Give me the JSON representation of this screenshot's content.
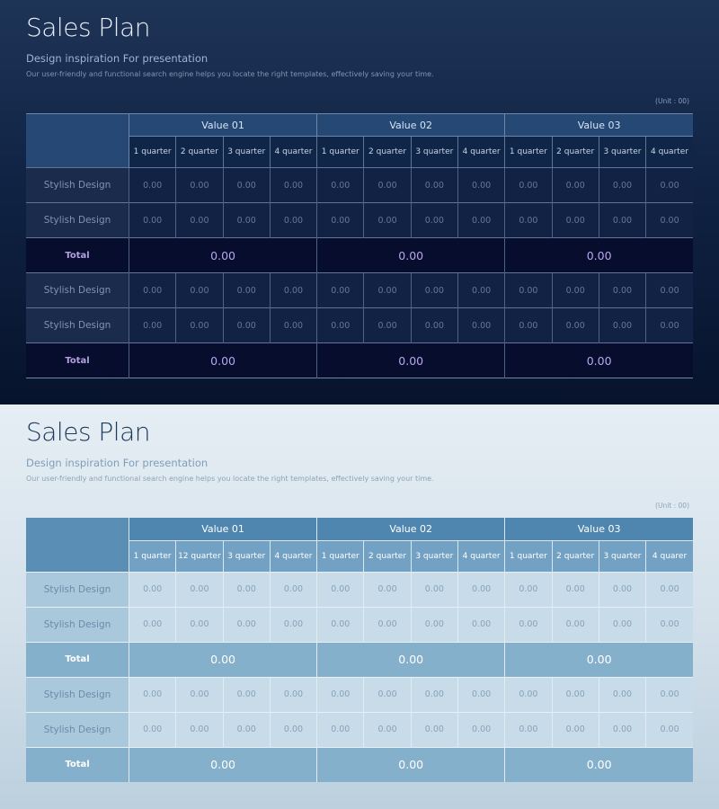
{
  "slides": [
    {
      "theme": "dark",
      "title": "Sales Plan",
      "subtitle": "Design inspiration For presentation",
      "description": "Our user-friendly and functional search engine helps you locate the right templates, effectively saving your time.",
      "unit": "(Unit : 00)",
      "groups": [
        "Value 01",
        "Value 02",
        "Value 03"
      ],
      "quarters": [
        [
          "1 quarter",
          "2 quarter",
          "3 quarter",
          "4 quarter"
        ],
        [
          "1 quarter",
          "2 quarter",
          "3 quarter",
          "4 quarter"
        ],
        [
          "1 quarter",
          "2 quarter",
          "3 quarter",
          "4 quarter"
        ]
      ],
      "rows": [
        {
          "type": "data",
          "label": "Stylish Design",
          "values": [
            "0.00",
            "0.00",
            "0.00",
            "0.00",
            "0.00",
            "0.00",
            "0.00",
            "0.00",
            "0.00",
            "0.00",
            "0.00",
            "0.00"
          ]
        },
        {
          "type": "data",
          "label": "Stylish Design",
          "values": [
            "0.00",
            "0.00",
            "0.00",
            "0.00",
            "0.00",
            "0.00",
            "0.00",
            "0.00",
            "0.00",
            "0.00",
            "0.00",
            "0.00"
          ]
        },
        {
          "type": "total",
          "label": "Total",
          "values": [
            "0.00",
            "0.00",
            "0.00"
          ]
        },
        {
          "type": "data",
          "label": "Stylish Design",
          "values": [
            "0.00",
            "0.00",
            "0.00",
            "0.00",
            "0.00",
            "0.00",
            "0.00",
            "0.00",
            "0.00",
            "0.00",
            "0.00",
            "0.00"
          ]
        },
        {
          "type": "data",
          "label": "Stylish Design",
          "values": [
            "0.00",
            "0.00",
            "0.00",
            "0.00",
            "0.00",
            "0.00",
            "0.00",
            "0.00",
            "0.00",
            "0.00",
            "0.00",
            "0.00"
          ]
        },
        {
          "type": "total",
          "label": "Total",
          "values": [
            "0.00",
            "0.00",
            "0.00"
          ]
        }
      ]
    },
    {
      "theme": "light",
      "title": "Sales Plan",
      "subtitle": "Design inspiration For presentation",
      "description": "Our user-friendly and functional search engine helps you locate the right templates, effectively saving your time.",
      "unit": "(Unit : 00)",
      "groups": [
        "Value 01",
        "Value 02",
        "Value 03"
      ],
      "quarters": [
        [
          "1 quarter",
          "12 quarter",
          "3 quarter",
          "4 quarter"
        ],
        [
          "1 quarter",
          "2 quarter",
          "3 quarter",
          "4 quarter"
        ],
        [
          "1 quarter",
          "2 quarter",
          "3 quarter",
          "4 quarer"
        ]
      ],
      "rows": [
        {
          "type": "data",
          "label": "Stylish Design",
          "values": [
            "0.00",
            "0.00",
            "0.00",
            "0.00",
            "0.00",
            "0.00",
            "0.00",
            "0.00",
            "0.00",
            "0.00",
            "0.00",
            "0.00"
          ]
        },
        {
          "type": "data",
          "label": "Stylish Design",
          "values": [
            "0.00",
            "0.00",
            "0.00",
            "0.00",
            "0.00",
            "0.00",
            "0.00",
            "0.00",
            "0.00",
            "0.00",
            "0.00",
            "0.00"
          ]
        },
        {
          "type": "total",
          "label": "Total",
          "values": [
            "0.00",
            "0.00",
            "0.00"
          ]
        },
        {
          "type": "data",
          "label": "Stylish Design",
          "values": [
            "0.00",
            "0.00",
            "0.00",
            "0.00",
            "0.00",
            "0.00",
            "0.00",
            "0.00",
            "0.00",
            "0.00",
            "0.00",
            "0.00"
          ]
        },
        {
          "type": "data",
          "label": "Stylish Design",
          "values": [
            "0.00",
            "0.00",
            "0.00",
            "0.00",
            "0.00",
            "0.00",
            "0.00",
            "0.00",
            "0.00",
            "0.00",
            "0.00",
            "0.00"
          ]
        },
        {
          "type": "total",
          "label": "Total",
          "values": [
            "0.00",
            "0.00",
            "0.00"
          ]
        }
      ]
    }
  ]
}
